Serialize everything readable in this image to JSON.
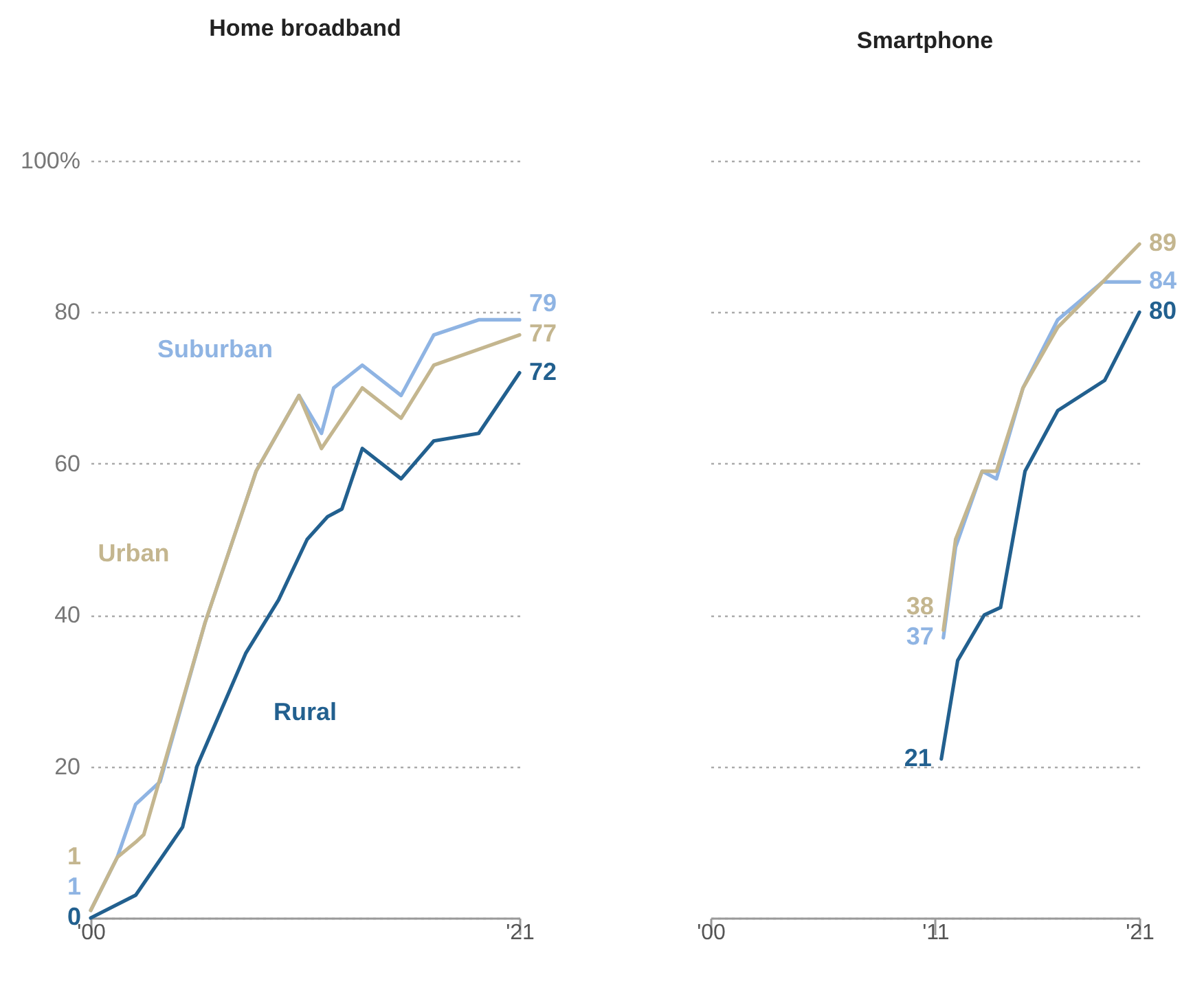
{
  "chart_data": [
    {
      "type": "line",
      "title": "Home broadband",
      "xlim": [
        2000,
        2021
      ],
      "xticks": [
        {
          "value": 2000,
          "label": "'00"
        },
        {
          "value": 2021,
          "label": "'21"
        }
      ],
      "ylim": [
        0,
        100
      ],
      "yticks": [
        {
          "value": 0,
          "label": null
        },
        20,
        40,
        60,
        80,
        {
          "value": 100,
          "label": "100%"
        }
      ],
      "grid": "y",
      "series": [
        {
          "name": "Suburban",
          "color": "#8fb4e3",
          "x": [
            2000,
            2001.3,
            2002.2,
            2003.4,
            2005.6,
            2008.1,
            2010.2,
            2011.3,
            2011.9,
            2013.3,
            2015.2,
            2016.8,
            2019,
            2021
          ],
          "values": [
            1,
            8,
            15,
            18,
            39,
            59,
            69,
            64,
            70,
            73,
            69,
            77,
            79,
            79
          ],
          "value_labels": [
            "1",
            null,
            null,
            null,
            null,
            null,
            null,
            null,
            null,
            null,
            null,
            null,
            null,
            "79"
          ]
        },
        {
          "name": "Urban",
          "color": "#c4b68f",
          "x": [
            2000,
            2001.3,
            2002.2,
            2002.6,
            2005.6,
            2008.1,
            2010.2,
            2011.3,
            2013.3,
            2015.2,
            2016.8,
            2021
          ],
          "values": [
            1,
            8,
            10,
            11,
            39,
            59,
            69,
            62,
            70,
            66,
            73,
            77
          ],
          "value_labels": [
            "1",
            null,
            null,
            null,
            null,
            null,
            null,
            null,
            null,
            null,
            null,
            "77"
          ]
        },
        {
          "name": "Rural",
          "color": "#22608f",
          "x": [
            2000,
            2002.2,
            2004.5,
            2005.2,
            2007.6,
            2009.2,
            2010.6,
            2011.6,
            2012.3,
            2013.3,
            2015.2,
            2016.8,
            2019,
            2021
          ],
          "values": [
            0,
            3,
            12,
            20,
            35,
            42,
            50,
            53,
            54,
            62,
            58,
            63,
            64,
            72
          ],
          "value_labels": [
            "0",
            null,
            null,
            null,
            null,
            null,
            null,
            null,
            null,
            null,
            null,
            null,
            null,
            "72"
          ]
        }
      ]
    },
    {
      "type": "line",
      "title": "Smartphone",
      "xlim": [
        2000,
        2021
      ],
      "xticks": [
        {
          "value": 2000,
          "label": "'00"
        },
        {
          "value": 2011,
          "label": "'11"
        },
        {
          "value": 2021,
          "label": "'21"
        }
      ],
      "ylim": [
        0,
        100
      ],
      "yticks": [
        0,
        20,
        40,
        60,
        80,
        100
      ],
      "tick_labels": "x",
      "grid": "y",
      "series": [
        {
          "color": "#8fb4e3",
          "x": [
            2011.4,
            2012,
            2013.3,
            2014,
            2015.3,
            2017,
            2019.2,
            2021
          ],
          "values": [
            37,
            49,
            59,
            58,
            70,
            79,
            84,
            84
          ],
          "value_labels": [
            "37",
            null,
            null,
            null,
            null,
            null,
            null,
            "84"
          ]
        },
        {
          "color": "#c4b68f",
          "x": [
            2011.4,
            2012,
            2013.3,
            2014,
            2015.3,
            2017,
            2019.2,
            2021
          ],
          "values": [
            38,
            50,
            59,
            59,
            70,
            78,
            84,
            89
          ],
          "value_labels": [
            "38",
            null,
            null,
            null,
            null,
            null,
            null,
            "89"
          ]
        },
        {
          "color": "#22608f",
          "x": [
            2011.3,
            2012.1,
            2013.4,
            2014.2,
            2015.4,
            2017,
            2019.3,
            2021
          ],
          "values": [
            21,
            34,
            40,
            41,
            59,
            67,
            71,
            80
          ],
          "value_labels": [
            "21",
            null,
            null,
            null,
            null,
            null,
            null,
            "80"
          ]
        }
      ]
    }
  ]
}
